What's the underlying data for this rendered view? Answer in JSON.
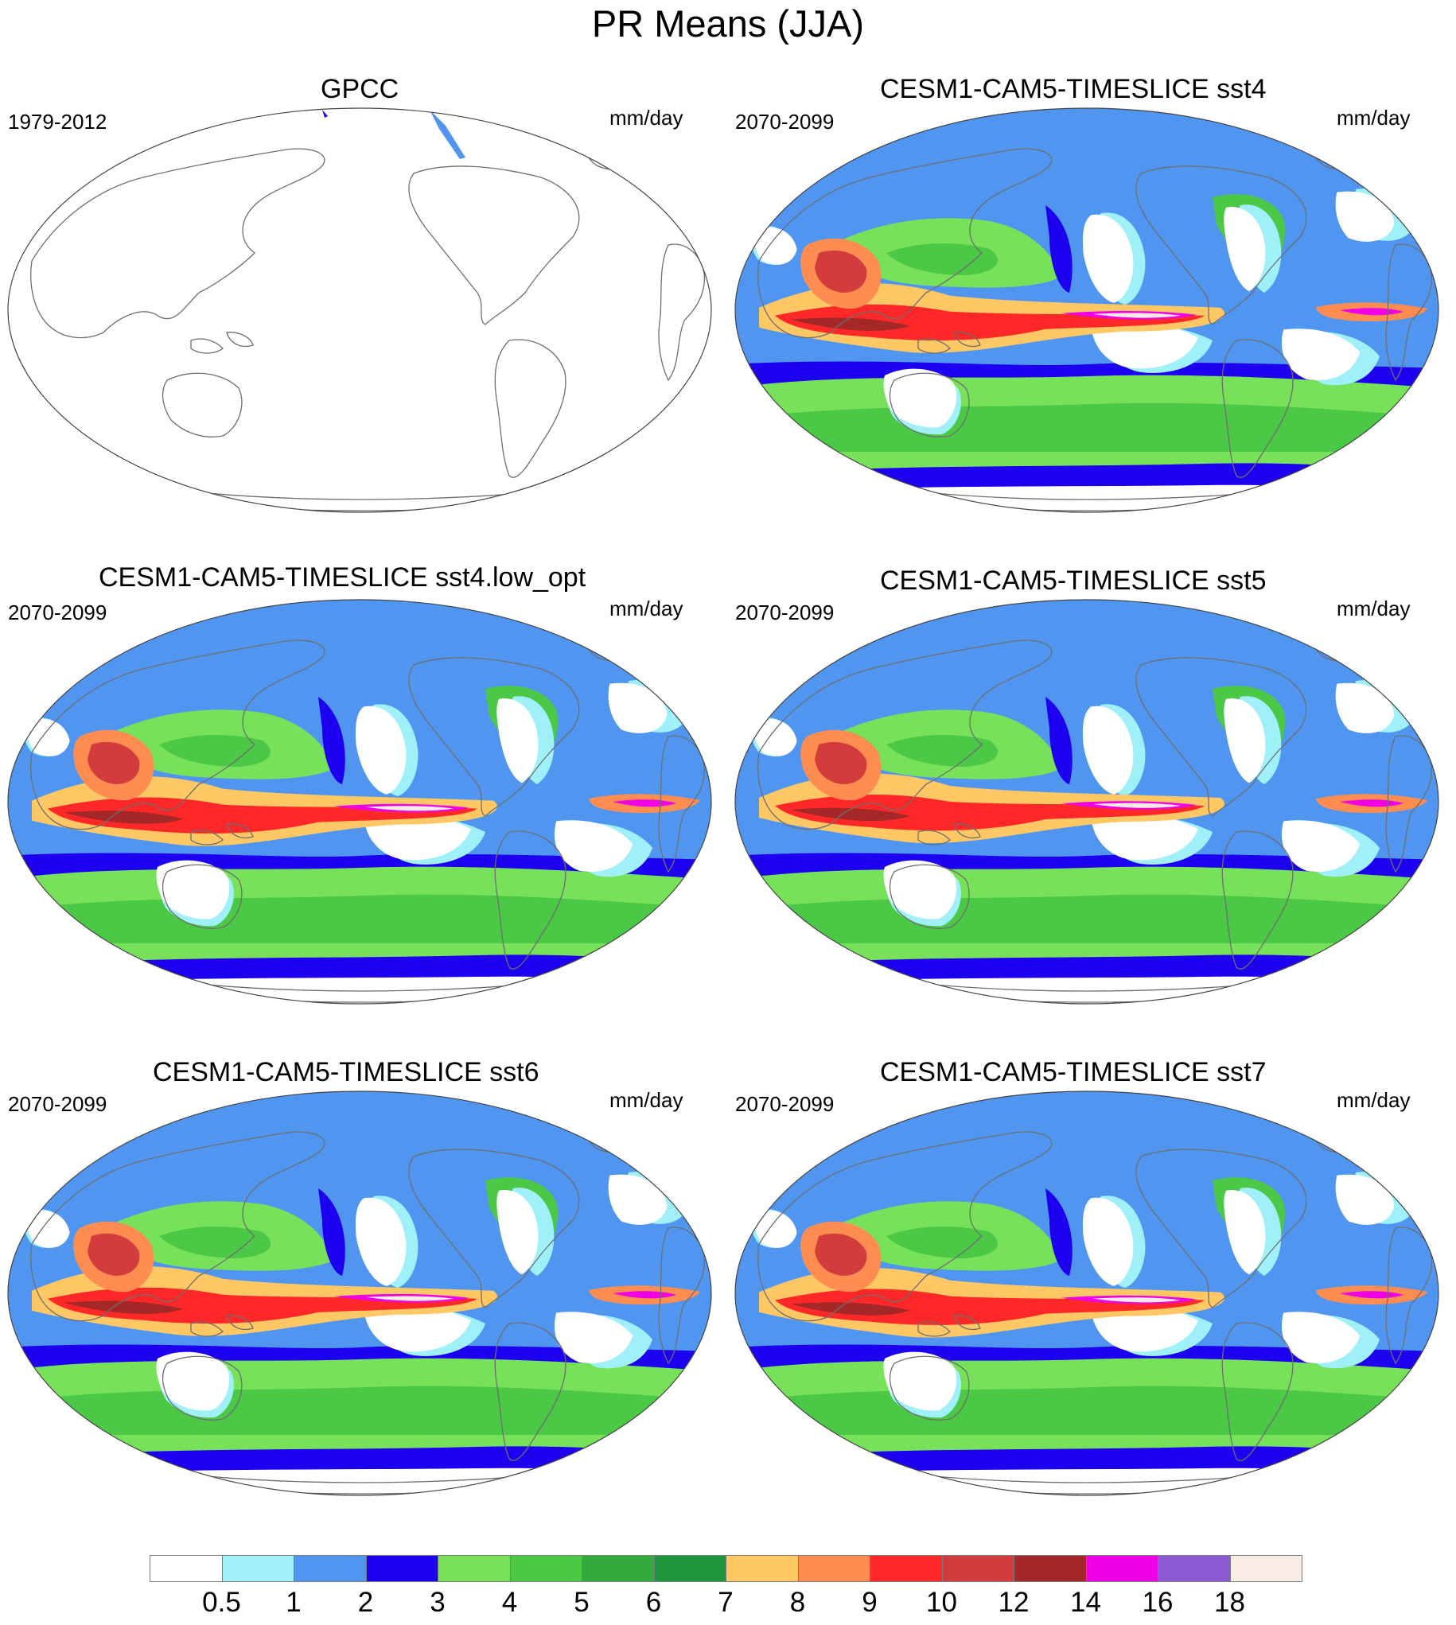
{
  "figure": {
    "title": "PR Means (JJA)"
  },
  "panels": [
    {
      "title": "GPCC",
      "period": "1979-2012",
      "units": "mm/day",
      "filled": false
    },
    {
      "title": "CESM1-CAM5-TIMESLICE sst4",
      "period": "2070-2099",
      "units": "mm/day",
      "filled": true
    },
    {
      "title": "CESM1-CAM5-TIMESLICE sst4.low_opt",
      "period": "2070-2099",
      "units": "mm/day",
      "filled": true
    },
    {
      "title": "CESM1-CAM5-TIMESLICE sst5",
      "period": "2070-2099",
      "units": "mm/day",
      "filled": true
    },
    {
      "title": "CESM1-CAM5-TIMESLICE sst6",
      "period": "2070-2099",
      "units": "mm/day",
      "filled": true
    },
    {
      "title": "CESM1-CAM5-TIMESLICE sst7",
      "period": "2070-2099",
      "units": "mm/day",
      "filled": true
    }
  ],
  "colorbar": {
    "levels": [
      "0.5",
      "1",
      "2",
      "3",
      "4",
      "5",
      "6",
      "7",
      "8",
      "9",
      "10",
      "12",
      "14",
      "16",
      "18"
    ],
    "colors": [
      "#ffffff",
      "#a0f0fa",
      "#5096f0",
      "#1e00f0",
      "#78e15a",
      "#4bc846",
      "#32aa3c",
      "#1e963c",
      "#ffc864",
      "#ff8c50",
      "#ff2828",
      "#d23c3c",
      "#a52828",
      "#f000e6",
      "#8c5ad2",
      "#f8ece4"
    ]
  },
  "map_features": {
    "projection": "Robinson",
    "central_longitude": "Pacific",
    "coastline_color": "#6e6e6e"
  }
}
